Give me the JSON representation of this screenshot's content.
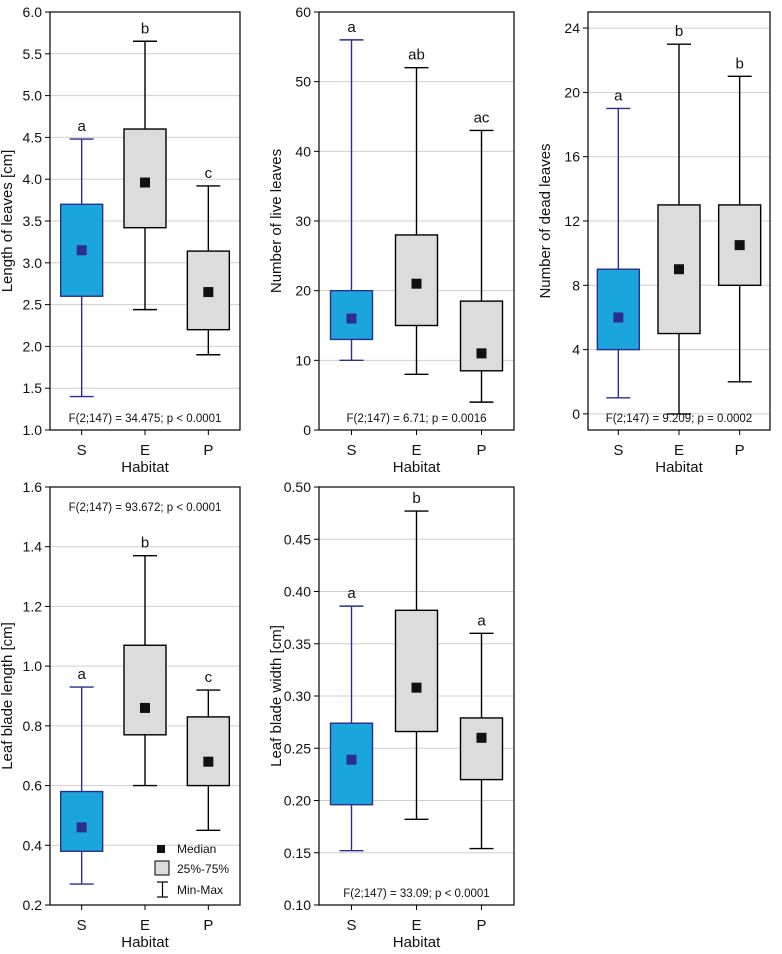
{
  "legend": {
    "median": "Median",
    "box": "25%-75%",
    "whisker": "Min-Max"
  },
  "colors": {
    "s_fill": "#1aa6dc",
    "s_stroke": "#2b2e8c",
    "other_fill": "#dcdcdc",
    "marker_s": "#2b2e8c",
    "marker_other": "#111111",
    "grid": "#cfcfcf",
    "frame": "#000000"
  },
  "chart_data": [
    {
      "type": "box",
      "id": "length",
      "ylabel": "Length of leaves [cm]",
      "xlabel": "Habitat",
      "ylim": [
        1.0,
        6.0
      ],
      "yticks": [
        1.0,
        1.5,
        2.0,
        2.5,
        3.0,
        3.5,
        4.0,
        4.5,
        5.0,
        5.5,
        6.0
      ],
      "decimals": 1,
      "stat": "F(2;147) = 34.475; p < 0.0001",
      "stat_pos": "bottom",
      "categories": [
        "S",
        "E",
        "P"
      ],
      "boxes": [
        {
          "min": 1.4,
          "q1": 2.6,
          "median": 3.15,
          "q3": 3.7,
          "max": 4.48,
          "letter": "a"
        },
        {
          "min": 2.44,
          "q1": 3.42,
          "median": 3.96,
          "q3": 4.6,
          "max": 5.65,
          "letter": "b"
        },
        {
          "min": 1.9,
          "q1": 2.2,
          "median": 2.65,
          "q3": 3.14,
          "max": 3.92,
          "letter": "c"
        }
      ]
    },
    {
      "type": "box",
      "id": "live",
      "ylabel": "Number of live leaves",
      "xlabel": "Habitat",
      "ylim": [
        0,
        60
      ],
      "yticks": [
        0,
        10,
        20,
        30,
        40,
        50,
        60
      ],
      "decimals": 0,
      "stat": "F(2;147) = 6.71; p = 0.0016",
      "stat_pos": "bottom",
      "categories": [
        "S",
        "E",
        "P"
      ],
      "boxes": [
        {
          "min": 10,
          "q1": 13,
          "median": 16,
          "q3": 20,
          "max": 56,
          "letter": "a"
        },
        {
          "min": 8,
          "q1": 15,
          "median": 21,
          "q3": 28,
          "max": 52,
          "letter": "ab"
        },
        {
          "min": 4,
          "q1": 8.5,
          "median": 11,
          "q3": 18.5,
          "max": 43,
          "letter": "ac"
        }
      ]
    },
    {
      "type": "box",
      "id": "dead",
      "ylabel": "Number of dead leaves",
      "xlabel": "Habitat",
      "ylim": [
        -1,
        25
      ],
      "yticks": [
        0,
        4,
        8,
        12,
        16,
        20,
        24
      ],
      "decimals": 0,
      "stat": "F(2;147) = 9.209; p = 0.0002",
      "stat_pos": "bottom",
      "categories": [
        "S",
        "E",
        "P"
      ],
      "boxes": [
        {
          "min": 1,
          "q1": 4,
          "median": 6,
          "q3": 9,
          "max": 19,
          "letter": "a"
        },
        {
          "min": 0,
          "q1": 5,
          "median": 9,
          "q3": 13,
          "max": 23,
          "letter": "b"
        },
        {
          "min": 2,
          "q1": 8,
          "median": 10.5,
          "q3": 13,
          "max": 21,
          "letter": "b"
        }
      ]
    },
    {
      "type": "box",
      "id": "bladelen",
      "ylabel": "Leaf blade length [cm]",
      "xlabel": "Habitat",
      "ylim": [
        0.2,
        1.6
      ],
      "yticks": [
        0.2,
        0.4,
        0.6,
        0.8,
        1.0,
        1.2,
        1.4,
        1.6
      ],
      "decimals": 1,
      "stat": "F(2;147) = 93.672; p < 0.0001",
      "stat_pos": "top",
      "categories": [
        "S",
        "E",
        "P"
      ],
      "boxes": [
        {
          "min": 0.27,
          "q1": 0.38,
          "median": 0.46,
          "q3": 0.58,
          "max": 0.93,
          "letter": "a"
        },
        {
          "min": 0.6,
          "q1": 0.77,
          "median": 0.86,
          "q3": 1.07,
          "max": 1.37,
          "letter": "b"
        },
        {
          "min": 0.45,
          "q1": 0.6,
          "median": 0.68,
          "q3": 0.83,
          "max": 0.92,
          "letter": "c"
        }
      ]
    },
    {
      "type": "box",
      "id": "bladewid",
      "ylabel": "Leaf blade width [cm]",
      "xlabel": "Habitat",
      "ylim": [
        0.1,
        0.5
      ],
      "yticks": [
        0.1,
        0.15,
        0.2,
        0.25,
        0.3,
        0.35,
        0.4,
        0.45,
        0.5
      ],
      "decimals": 2,
      "stat": "F(2;147) = 33.09; p < 0.0001",
      "stat_pos": "bottom",
      "categories": [
        "S",
        "E",
        "P"
      ],
      "boxes": [
        {
          "min": 0.152,
          "q1": 0.196,
          "median": 0.239,
          "q3": 0.274,
          "max": 0.386,
          "letter": "a"
        },
        {
          "min": 0.182,
          "q1": 0.266,
          "median": 0.308,
          "q3": 0.382,
          "max": 0.477,
          "letter": "b"
        },
        {
          "min": 0.154,
          "q1": 0.22,
          "median": 0.26,
          "q3": 0.279,
          "max": 0.36,
          "letter": "a"
        }
      ]
    }
  ]
}
